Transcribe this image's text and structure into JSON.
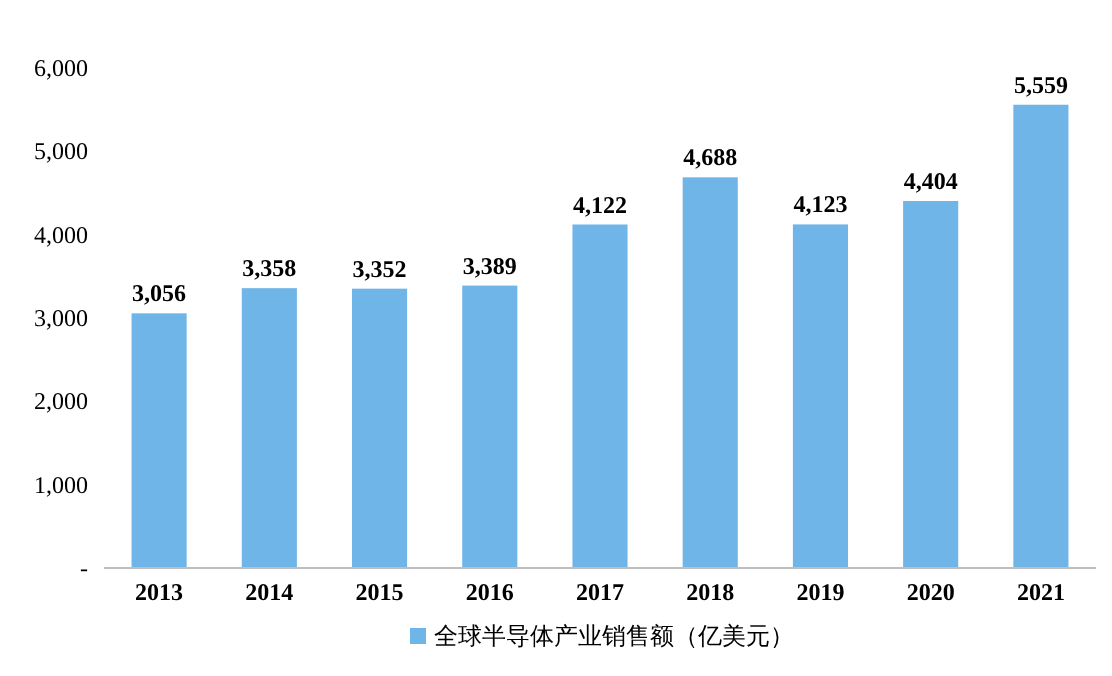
{
  "chart_data": {
    "type": "bar",
    "categories": [
      "2013",
      "2014",
      "2015",
      "2016",
      "2017",
      "2018",
      "2019",
      "2020",
      "2021"
    ],
    "series": [
      {
        "name": "全球半导体产业销售额（亿美元）",
        "color": "#70b5e8",
        "values": [
          3056,
          3358,
          3352,
          3389,
          4122,
          4688,
          4123,
          4404,
          5559
        ],
        "value_labels": [
          "3,056",
          "3,358",
          "3,352",
          "3,389",
          "4,122",
          "4,688",
          "4,123",
          "4,404",
          "5,559"
        ]
      }
    ],
    "ylim": [
      0,
      6000
    ],
    "yticks": [
      {
        "value": 0,
        "label": "-"
      },
      {
        "value": 1000,
        "label": "1,000"
      },
      {
        "value": 2000,
        "label": "2,000"
      },
      {
        "value": 3000,
        "label": "3,000"
      },
      {
        "value": 4000,
        "label": "4,000"
      },
      {
        "value": 5000,
        "label": "5,000"
      },
      {
        "value": 6000,
        "label": "6,000"
      }
    ],
    "legend": "bottom"
  }
}
